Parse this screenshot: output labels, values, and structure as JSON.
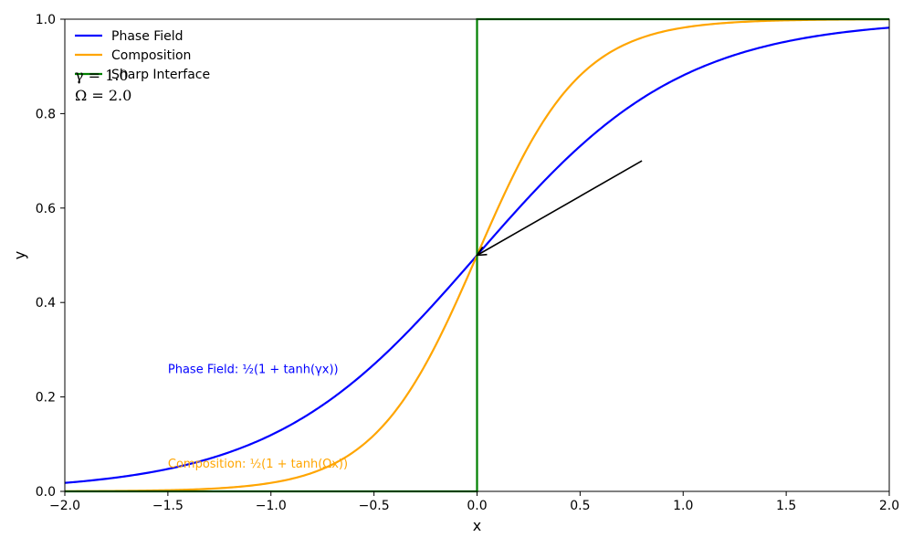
{
  "chart_data": {
    "type": "line",
    "xlabel": "x",
    "ylabel": "y",
    "xlim": [
      -2.0,
      2.0
    ],
    "ylim": [
      0.0,
      1.0
    ],
    "xticks": [
      -2.0,
      -1.5,
      -1.0,
      -0.5,
      0.0,
      0.5,
      1.0,
      1.5,
      2.0
    ],
    "xtick_labels": [
      "−2.0",
      "−1.5",
      "−1.0",
      "−0.5",
      "0.0",
      "0.5",
      "1.0",
      "1.5",
      "2.0"
    ],
    "yticks": [
      0.0,
      0.2,
      0.4,
      0.6,
      0.8,
      1.0
    ],
    "ytick_labels": [
      "0.0",
      "0.2",
      "0.4",
      "0.6",
      "0.8",
      "1.0"
    ],
    "grid": false,
    "legend_position": "top-left",
    "parameters": {
      "gamma": 1.0,
      "omega": 2.0
    },
    "param_labels": {
      "gamma": "γ = 1.0",
      "omega": "Ω = 2.0"
    },
    "series": [
      {
        "name": "Phase Field",
        "color": "#0000ff",
        "function": "0.5*(1+tanh(gamma*x))",
        "x": [
          -2.0,
          -1.5,
          -1.0,
          -0.5,
          0.0,
          0.5,
          1.0,
          1.5,
          2.0
        ],
        "y": [
          0.018,
          0.047,
          0.119,
          0.269,
          0.5,
          0.731,
          0.881,
          0.953,
          0.982
        ]
      },
      {
        "name": "Composition",
        "color": "#ffa500",
        "function": "0.5*(1+tanh(omega*x))",
        "x": [
          -2.0,
          -1.5,
          -1.0,
          -0.5,
          0.0,
          0.5,
          1.0,
          1.5,
          2.0
        ],
        "y": [
          0.0003,
          0.0025,
          0.018,
          0.119,
          0.5,
          0.881,
          0.982,
          0.9975,
          0.9997
        ]
      },
      {
        "name": "Sharp Interface",
        "color": "#008000",
        "function": "step(x)",
        "x": [
          -2.0,
          0.0,
          0.0,
          2.0
        ],
        "y": [
          0.0,
          0.0,
          1.0,
          1.0
        ]
      }
    ],
    "annotations": [
      {
        "text": "Phase Field: ½(1 + tanh(γx))",
        "x": -1.5,
        "y": 0.26,
        "color": "#0000ff"
      },
      {
        "text": "Composition: ½(1 + tanh(Ωx))",
        "x": -1.5,
        "y": 0.06,
        "color": "#ffa500"
      }
    ],
    "arrow": {
      "from": [
        0.8,
        0.7
      ],
      "to": [
        0.0,
        0.5
      ],
      "color": "#000000"
    }
  }
}
